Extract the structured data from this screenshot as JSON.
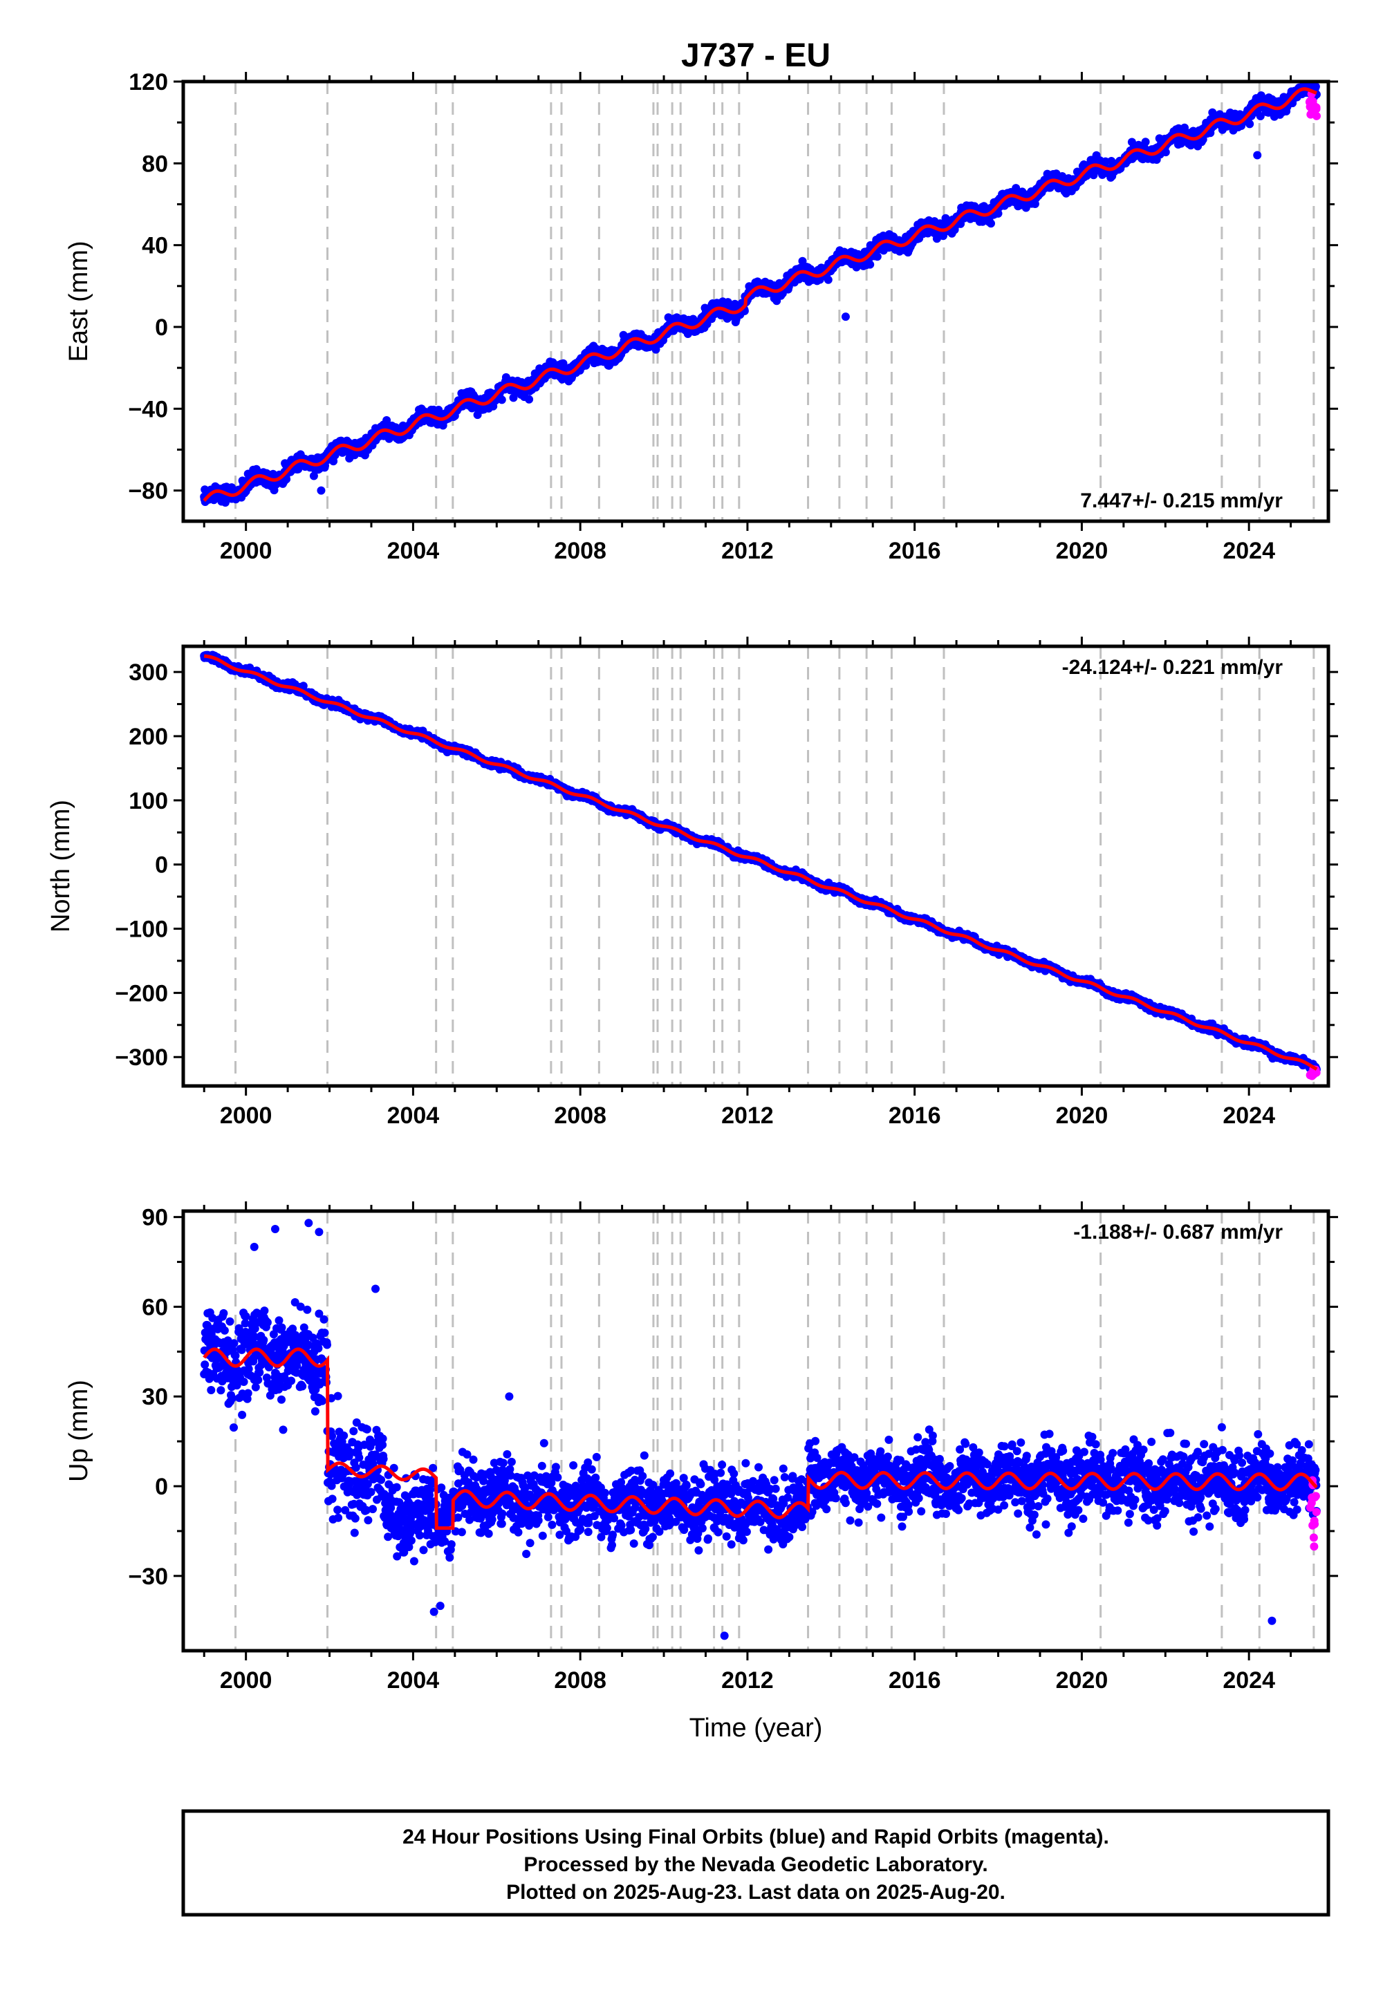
{
  "title": "J737 - EU",
  "xlabel": "Time (year)",
  "footer": [
    "24 Hour Positions Using Final Orbits (blue) and Rapid Orbits (magenta).",
    "Processed by the Nevada Geodetic Laboratory.",
    "Plotted on 2025-Aug-23. Last data on 2025-Aug-20."
  ],
  "colors": {
    "final": "#0000ff",
    "rapid": "#ff00ff",
    "model": "#ff0000",
    "events": "#c0c0c0",
    "frame": "#000000"
  },
  "chart_data": [
    {
      "type": "scatter",
      "name": "east",
      "ylabel": "East (mm)",
      "rate_label": "7.447+/- 0.215 mm/yr",
      "rate_position": "bottom-right",
      "xlim": [
        1998.5,
        2025.9
      ],
      "ylim": [
        -95,
        120
      ],
      "xticks": [
        2000,
        2004,
        2008,
        2012,
        2016,
        2020,
        2024
      ],
      "yticks": [
        -80,
        -40,
        0,
        40,
        80,
        120
      ],
      "yticklabels": [
        "−80",
        "−40",
        "0",
        "40",
        "80",
        "120"
      ],
      "events": [
        1999.75,
        2001.95,
        2004.55,
        2004.95,
        2007.3,
        2007.55,
        2008.45,
        2009.75,
        2009.85,
        2010.2,
        2010.4,
        2011.2,
        2011.4,
        2011.8,
        2013.45,
        2014.2,
        2014.85,
        2015.45,
        2016.7,
        2020.45,
        2023.35,
        2024.25,
        2025.55
      ],
      "model_type": "linear_seasonal",
      "model": {
        "t0": 1999.0,
        "y0": -85,
        "rate": 7.447,
        "amp": 2.6,
        "noise": 1.8,
        "t_start": 1999.0,
        "t_end": 2025.62
      },
      "steps": [
        {
          "t": 2011.95,
          "dy": 3
        }
      ],
      "outliers": [
        [
          2014.35,
          5
        ],
        [
          2001.8,
          -80
        ],
        [
          2024.2,
          84
        ]
      ],
      "rapid": {
        "t_start": 2025.45,
        "t_end": 2025.62,
        "ymin": 103,
        "ymax": 115
      }
    },
    {
      "type": "scatter",
      "name": "north",
      "ylabel": "North (mm)",
      "rate_label": "-24.124+/- 0.221 mm/yr",
      "rate_position": "top-right",
      "xlim": [
        1998.5,
        2025.9
      ],
      "ylim": [
        -345,
        340
      ],
      "xticks": [
        2000,
        2004,
        2008,
        2012,
        2016,
        2020,
        2024
      ],
      "yticks": [
        -300,
        -200,
        -100,
        0,
        100,
        200,
        300
      ],
      "yticklabels": [
        "−300",
        "−200",
        "−100",
        "0",
        "100",
        "200",
        "300"
      ],
      "events": [
        1999.75,
        2001.95,
        2004.55,
        2004.95,
        2007.3,
        2007.55,
        2008.45,
        2009.75,
        2009.85,
        2010.2,
        2010.4,
        2011.2,
        2011.4,
        2011.8,
        2013.45,
        2014.2,
        2014.85,
        2015.45,
        2016.7,
        2020.45,
        2023.35,
        2024.25,
        2025.55
      ],
      "model_type": "linear_seasonal",
      "model": {
        "t0": 1999.0,
        "y0": 325,
        "rate": -24.124,
        "amp": 2.5,
        "noise": 2.5,
        "t_start": 1999.0,
        "t_end": 2025.62
      },
      "steps": [],
      "outliers": [],
      "rapid": {
        "t_start": 2025.45,
        "t_end": 2025.62,
        "ymin": -330,
        "ymax": -318
      }
    },
    {
      "type": "scatter",
      "name": "up",
      "ylabel": "Up (mm)",
      "rate_label": "-1.188+/- 0.687 mm/yr",
      "rate_position": "top-right",
      "xlim": [
        1998.5,
        2025.9
      ],
      "ylim": [
        -55,
        92
      ],
      "xticks": [
        2000,
        2004,
        2008,
        2012,
        2016,
        2020,
        2024
      ],
      "yticks": [
        -30,
        0,
        30,
        60,
        90
      ],
      "yticklabels": [
        "−30",
        "0",
        "30",
        "60",
        "90"
      ],
      "events": [
        1999.75,
        2001.95,
        2004.55,
        2004.95,
        2007.3,
        2007.55,
        2008.45,
        2009.75,
        2009.85,
        2010.2,
        2010.4,
        2011.2,
        2011.4,
        2011.8,
        2013.45,
        2014.2,
        2014.85,
        2015.45,
        2016.7,
        2020.45,
        2023.35,
        2024.25,
        2025.55
      ],
      "model_type": "piecewise",
      "model_segments": [
        {
          "t_start": 1999.0,
          "t_end": 2001.95,
          "y0": 43,
          "rate": 0,
          "amp": 2.8
        },
        {
          "t_start": 2001.95,
          "t_end": 2004.55,
          "y0": 6,
          "rate": -1.0,
          "amp": 2.0
        },
        {
          "t_start": 2004.55,
          "t_end": 2004.95,
          "y0": -14,
          "rate": 0,
          "amp": 0
        },
        {
          "t_start": 2004.95,
          "t_end": 2013.45,
          "y0": -4,
          "rate": -0.5,
          "amp": 2.6
        },
        {
          "t_start": 2013.45,
          "t_end": 2025.62,
          "y0": 2,
          "rate": -0.05,
          "amp": 2.6
        }
      ],
      "data_segments": [
        {
          "t_start": 1999.0,
          "t_end": 2003.3,
          "noise": 7.5
        },
        {
          "t_start": 2003.3,
          "t_end": 2005.0,
          "noise": 6.0,
          "y_override": -10
        },
        {
          "t_start": 2005.0,
          "t_end": 2025.62,
          "noise": 5.5
        }
      ],
      "outliers": [
        [
          2000.7,
          86
        ],
        [
          2001.5,
          88
        ],
        [
          2001.75,
          85
        ],
        [
          2006.3,
          30
        ],
        [
          2004.5,
          -42
        ],
        [
          2004.65,
          -40
        ],
        [
          2011.45,
          -50
        ],
        [
          2024.55,
          -45
        ],
        [
          2000.2,
          80
        ],
        [
          2003.1,
          66
        ]
      ],
      "rapid": {
        "t_start": 2025.45,
        "t_end": 2025.62,
        "ymin": -22,
        "ymax": 2
      }
    }
  ]
}
